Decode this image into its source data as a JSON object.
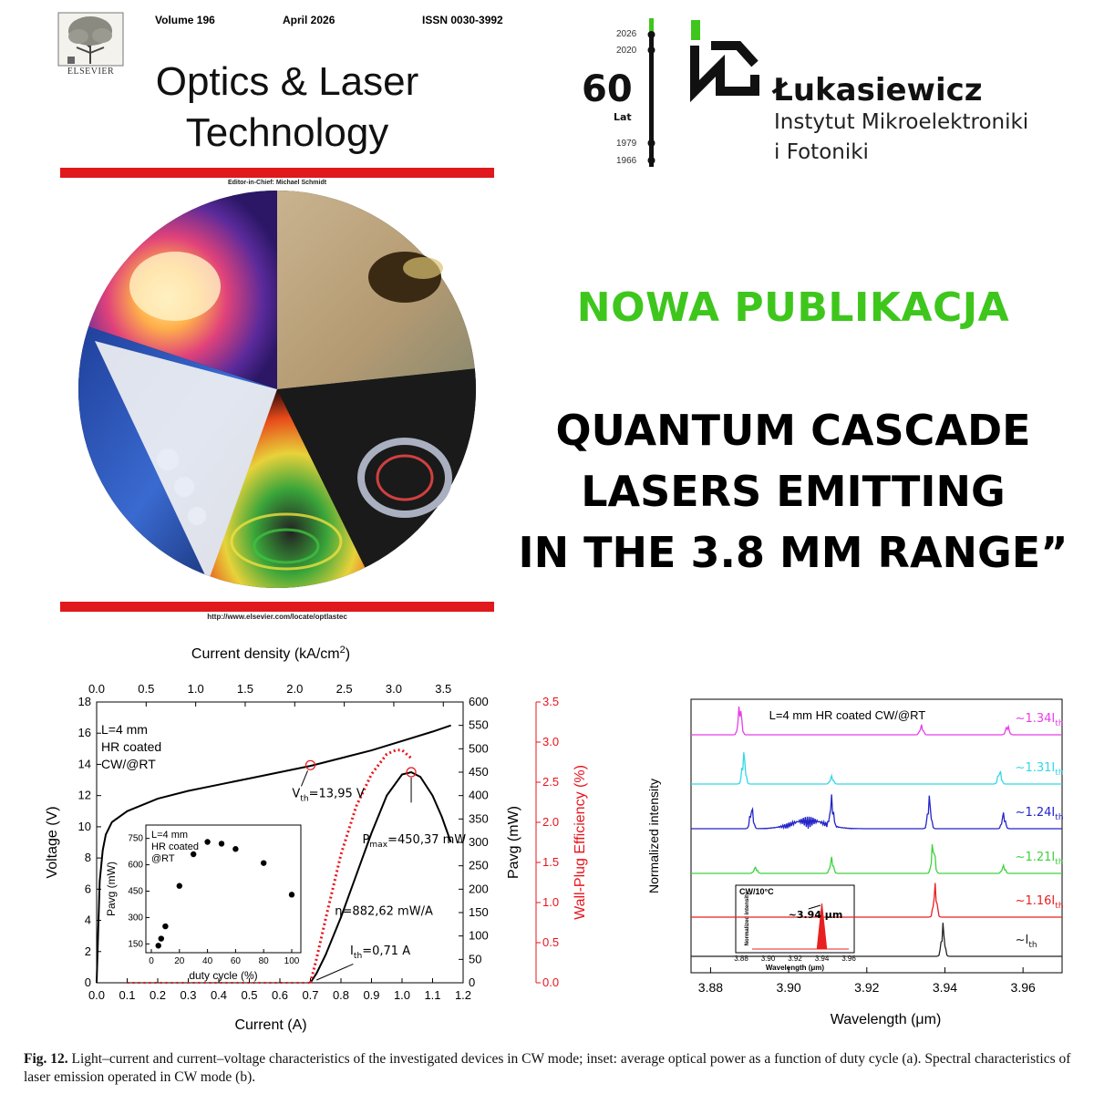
{
  "cover": {
    "volume": "Volume 196",
    "date": "April 2026",
    "issn": "ISSN 0030-3992",
    "publisher": "ELSEVIER",
    "title_line1": "Optics & Laser",
    "title_line2": "Technology",
    "editor": "Editor-in-Chief: Michael Schmidt",
    "url": "http://www.elsevier.com/locate/optlastec",
    "colors": {
      "bar": "#e0191c"
    }
  },
  "institute": {
    "years_top": [
      "2026",
      "2020"
    ],
    "years_bottom": [
      "1979",
      "1966"
    ],
    "anniversary": "60",
    "anniversary_label": "Lat",
    "name": "Łukasiewicz",
    "line1": "Instytut Mikroelektroniki",
    "line2": "i Fotoniki",
    "colors": {
      "green": "#3ec61c",
      "dark": "#111111"
    }
  },
  "headline": {
    "label": "NOWA PUBLIKACJA",
    "title_lines": [
      "QUANTUM CASCADE",
      "LASERS EMITTING",
      "IN THE 3.8 MM RANGE”"
    ]
  },
  "figure_a": {
    "top_axis_label": "Current density (kA/cm",
    "top_axis_sup": "2",
    "top_axis_close": ")",
    "top_ticks": [
      "0.0",
      "0.5",
      "1.0",
      "1.5",
      "2.0",
      "2.5",
      "3.0",
      "3.5"
    ],
    "x_label": "Current (A)",
    "x_ticks": [
      "0.0",
      "0.1",
      "0.2",
      "0.3",
      "0.4",
      "0.5",
      "0.6",
      "0.7",
      "0.8",
      "0.9",
      "1.0",
      "1.1",
      "1.2"
    ],
    "left_label": "Voltage (V)",
    "left_ticks": [
      "0",
      "2",
      "4",
      "6",
      "8",
      "10",
      "12",
      "14",
      "16",
      "18"
    ],
    "right1_label": "Pavg (mW)",
    "right1_ticks": [
      "0",
      "50",
      "100",
      "150",
      "200",
      "250",
      "300",
      "350",
      "400",
      "450",
      "500",
      "550",
      "600"
    ],
    "right2_label": "Wall-Plug Efficiency (%)",
    "right2_ticks": [
      "0.0",
      "0.5",
      "1.0",
      "1.5",
      "2.0",
      "2.5",
      "3.0",
      "3.5"
    ],
    "legend_lines": [
      "L=4 mm",
      "HR coated",
      "CW/@RT"
    ],
    "ann_vth": "V",
    "ann_vth_sub": "th",
    "ann_vth_val": "=13,95 V",
    "ann_pmax": "P",
    "ann_pmax_sub": "max",
    "ann_pmax_val": "=450,37 mW",
    "ann_eta": "η=882,62 mW/A",
    "ann_ith": "I",
    "ann_ith_sub": "th",
    "ann_ith_val": "=0,71 A",
    "inset": {
      "legend_lines": [
        "L=4 mm",
        "HR coated",
        "@RT"
      ],
      "x_label": "duty cycle (%)",
      "x_ticks": [
        "0",
        "20",
        "40",
        "60",
        "80",
        "100"
      ],
      "y_label": "Pavg (mW)",
      "y_ticks": [
        "150",
        "300",
        "450",
        "600",
        "750"
      ]
    },
    "colors": {
      "voltage": "#000000",
      "power": "#000000",
      "wpe": "#e8141c"
    }
  },
  "figure_b": {
    "legend": "L=4 mm HR coated CW/@RT",
    "x_label": "Wavelength (μm)",
    "x_ticks": [
      "3.88",
      "3.90",
      "3.92",
      "3.94",
      "3.96"
    ],
    "y_label": "Normalized intensity",
    "traces": [
      {
        "label": "~1.34I",
        "sub": "th",
        "color": "#e83ee8"
      },
      {
        "label": "~1.31I",
        "sub": "th",
        "color": "#33d6e8"
      },
      {
        "label": "~1.24I",
        "sub": "th",
        "color": "#2424c8"
      },
      {
        "label": "~1.21I",
        "sub": "th",
        "color": "#3ed23e"
      },
      {
        "label": "~1.16I",
        "sub": "th",
        "color": "#e82020"
      },
      {
        "label": "~I",
        "sub": "th",
        "color": "#222222"
      }
    ],
    "inset": {
      "title": "CW/10°C",
      "y_label": "Normalized intensity",
      "x_label": "Wavelength (μm)",
      "x_ticks": [
        "3.88",
        "3.90",
        "3.92",
        "3.94",
        "3.96"
      ],
      "peak_label": "~3.94 μm"
    }
  },
  "caption": {
    "label": "Fig. 12.",
    "text": "Light–current and current–voltage characteristics of the investigated devices in CW mode; inset: average optical power as a function of duty cycle (a). Spectral characteristics of laser emission operated in CW mode (b)."
  },
  "chart_data": [
    {
      "type": "line",
      "title": "",
      "xlabel": "Current (A)",
      "x2label": "Current density (kA/cm2)",
      "ylabel": "Voltage (V)",
      "y2label": "Pavg (mW)",
      "y3label": "Wall-Plug Efficiency (%)",
      "xlim": [
        0,
        1.2
      ],
      "ylim": [
        0,
        18
      ],
      "y2lim": [
        0,
        600
      ],
      "y3lim": [
        0,
        3.5
      ],
      "series": [
        {
          "axis": "left",
          "x": [
            0,
            0.01,
            0.02,
            0.03,
            0.05,
            0.1,
            0.2,
            0.3,
            0.4,
            0.5,
            0.6,
            0.7,
            0.8,
            0.9,
            1.0,
            1.1,
            1.16
          ],
          "y": [
            0,
            6.5,
            8.5,
            9.5,
            10.3,
            11.0,
            11.8,
            12.3,
            12.7,
            13.1,
            13.5,
            13.9,
            14.4,
            14.9,
            15.5,
            16.1,
            16.5
          ]
        },
        {
          "axis": "right",
          "x": [
            0.7,
            0.72,
            0.75,
            0.8,
            0.85,
            0.9,
            0.95,
            1.0,
            1.03,
            1.06,
            1.1,
            1.13,
            1.16
          ],
          "y": [
            0,
            20,
            60,
            140,
            230,
            320,
            400,
            445,
            450,
            440,
            400,
            355,
            300
          ]
        },
        {
          "axis": "right2",
          "x": [
            0.7,
            0.72,
            0.75,
            0.8,
            0.85,
            0.9,
            0.95,
            0.98,
            1.0,
            1.03
          ],
          "y": [
            0,
            0.3,
            0.8,
            1.6,
            2.2,
            2.6,
            2.85,
            2.9,
            2.9,
            2.8
          ]
        },
        {
          "axis": "inset",
          "x": [
            5,
            7,
            10,
            20,
            30,
            40,
            50,
            60,
            80,
            100
          ],
          "y": [
            140,
            180,
            250,
            480,
            660,
            730,
            720,
            690,
            610,
            430
          ]
        }
      ]
    },
    {
      "type": "line",
      "title": "",
      "xlabel": "Wavelength (μm)",
      "ylabel": "Normalized intensity",
      "xlim": [
        3.875,
        3.97
      ],
      "series": [
        {
          "name": "~1.34Ith",
          "peaks": [
            [
              3.8875,
              1.0
            ],
            [
              3.934,
              0.3
            ],
            [
              3.956,
              0.3
            ]
          ]
        },
        {
          "name": "~1.31Ith",
          "peaks": [
            [
              3.8885,
              1.0
            ],
            [
              3.911,
              0.25
            ],
            [
              3.954,
              0.45
            ]
          ]
        },
        {
          "name": "~1.24Ith",
          "peaks": [
            [
              3.8905,
              0.7
            ],
            [
              3.911,
              0.9
            ],
            [
              3.936,
              1.0
            ],
            [
              3.955,
              0.5
            ]
          ]
        },
        {
          "name": "~1.21Ith",
          "peaks": [
            [
              3.8915,
              0.2
            ],
            [
              3.911,
              0.5
            ],
            [
              3.937,
              1.0
            ],
            [
              3.955,
              0.25
            ]
          ]
        },
        {
          "name": "~1.16Ith",
          "peaks": [
            [
              3.9375,
              1.0
            ]
          ]
        },
        {
          "name": "~Ith",
          "peaks": [
            [
              3.9395,
              1.0
            ]
          ]
        }
      ]
    }
  ]
}
